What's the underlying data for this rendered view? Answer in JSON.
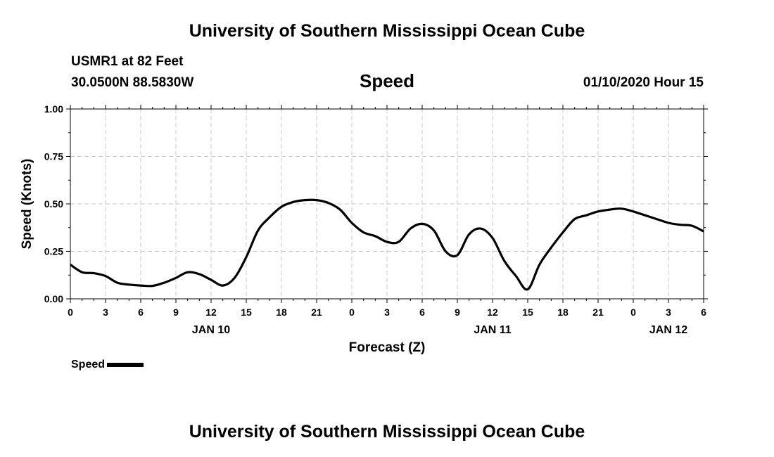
{
  "header": {
    "title": "University of Southern Mississippi Ocean Cube",
    "station": "USMR1 at 82 Feet",
    "coords": "30.0500N 88.5830W",
    "variable": "Speed",
    "datetime": "01/10/2020 Hour 15"
  },
  "footer": {
    "title": "University of Southern Mississippi Ocean Cube"
  },
  "chart_data": {
    "type": "line",
    "title": "Speed",
    "xlabel": "Forecast (Z)",
    "ylabel": "Speed (Knots)",
    "xlim": [
      0,
      54
    ],
    "ylim": [
      0,
      1
    ],
    "grid": true,
    "y_ticks": [
      "0.00",
      "0.25",
      "0.50",
      "0.75",
      "1.00"
    ],
    "x_ticks": [
      "0",
      "3",
      "6",
      "9",
      "12",
      "15",
      "18",
      "21",
      "0",
      "3",
      "6",
      "9",
      "12",
      "15",
      "18",
      "21",
      "0",
      "3",
      "6"
    ],
    "day_labels": [
      {
        "label": "JAN 10",
        "x": 12
      },
      {
        "label": "JAN 11",
        "x": 36
      },
      {
        "label": "JAN 12",
        "x": 51
      }
    ],
    "legend_position": "bottom-left",
    "series": [
      {
        "name": "Speed",
        "color": "#000000",
        "x": [
          0,
          1,
          2,
          3,
          4,
          5,
          6,
          7,
          8,
          9,
          10,
          11,
          12,
          13,
          14,
          15,
          16,
          17,
          18,
          19,
          20,
          21,
          22,
          23,
          24,
          25,
          26,
          27,
          28,
          29,
          30,
          31,
          32,
          33,
          34,
          35,
          36,
          37,
          38,
          39,
          40,
          41,
          42,
          43,
          44,
          45,
          46,
          47,
          48,
          49,
          50,
          51,
          52,
          53,
          54
        ],
        "values": [
          0.18,
          0.14,
          0.135,
          0.12,
          0.085,
          0.075,
          0.07,
          0.068,
          0.085,
          0.11,
          0.14,
          0.13,
          0.1,
          0.07,
          0.11,
          0.22,
          0.36,
          0.43,
          0.485,
          0.51,
          0.52,
          0.52,
          0.505,
          0.47,
          0.4,
          0.35,
          0.33,
          0.3,
          0.3,
          0.37,
          0.395,
          0.36,
          0.25,
          0.23,
          0.34,
          0.37,
          0.32,
          0.2,
          0.12,
          0.05,
          0.18,
          0.27,
          0.35,
          0.42,
          0.44,
          0.46,
          0.47,
          0.475,
          0.46,
          0.44,
          0.42,
          0.4,
          0.39,
          0.385,
          0.355
        ]
      }
    ]
  }
}
